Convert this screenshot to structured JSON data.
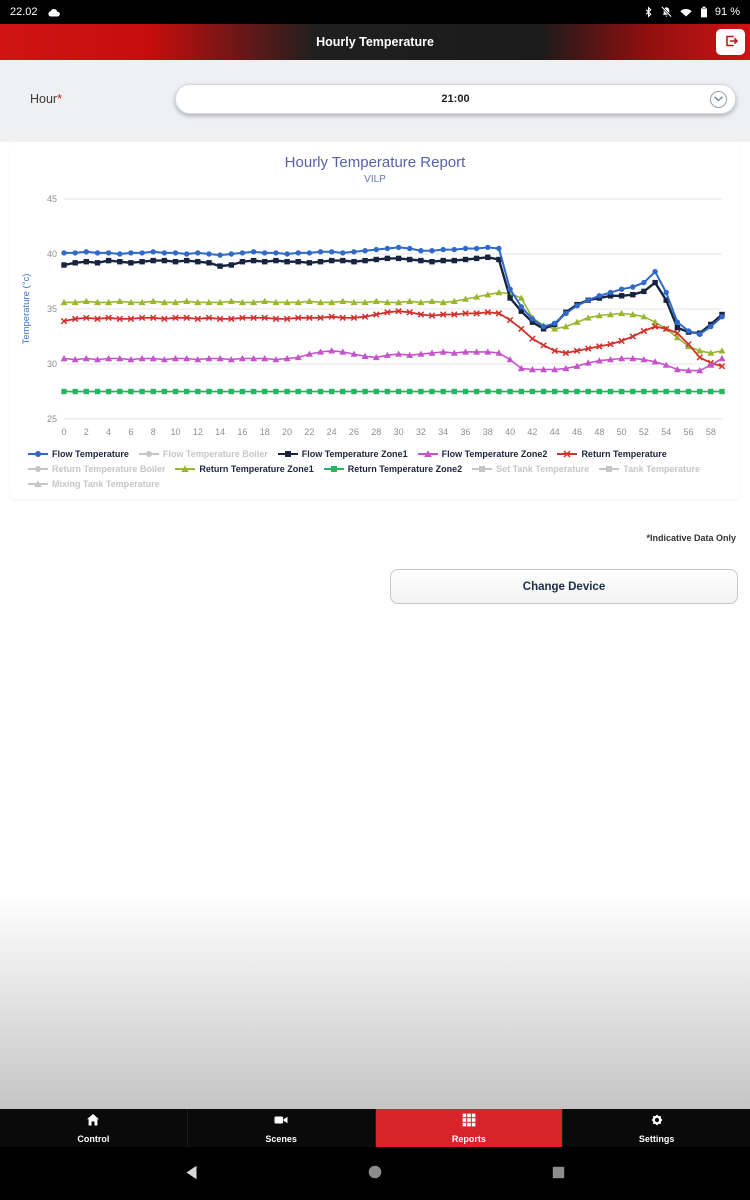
{
  "status_bar": {
    "time": "22.02",
    "battery": "91 %"
  },
  "header": {
    "title": "Hourly Temperature"
  },
  "hour_selector": {
    "label": "Hour",
    "required_mark": "*",
    "value": "21:00"
  },
  "footnote": "*Indicative Data Only",
  "buttons": {
    "change_device": "Change Device"
  },
  "colors": {
    "accent_red": "#d8232a",
    "header_red": "#c60d0d",
    "disabled_gray": "#c6c6c6"
  },
  "bottom_nav": {
    "items": [
      {
        "label": "Control",
        "active": false
      },
      {
        "label": "Scenes",
        "active": false
      },
      {
        "label": "Reports",
        "active": true
      },
      {
        "label": "Settings",
        "active": false
      }
    ]
  },
  "android_nav": {
    "buttons": [
      "back",
      "home",
      "recents"
    ]
  },
  "chart_data": {
    "type": "line",
    "title": "Hourly Temperature Report",
    "subtitle": "VILP",
    "ylabel": "Temperature (°c)",
    "xlabel": "",
    "ylim": [
      25,
      45
    ],
    "y_ticks": [
      25,
      30,
      35,
      40,
      45
    ],
    "x_tick_step": 2,
    "grid": "horizontal",
    "legend_position": "bottom",
    "x": [
      0,
      1,
      2,
      3,
      4,
      5,
      6,
      7,
      8,
      9,
      10,
      11,
      12,
      13,
      14,
      15,
      16,
      17,
      18,
      19,
      20,
      21,
      22,
      23,
      24,
      25,
      26,
      27,
      28,
      29,
      30,
      31,
      32,
      33,
      34,
      35,
      36,
      37,
      38,
      39,
      40,
      41,
      42,
      43,
      44,
      45,
      46,
      47,
      48,
      49,
      50,
      51,
      52,
      53,
      54,
      55,
      56,
      57,
      58,
      59
    ],
    "series": [
      {
        "name": "Flow Temperature",
        "color": "#3069c9",
        "marker": "circle",
        "line_width": 2,
        "enabled": true,
        "values": [
          40.1,
          40.1,
          40.2,
          40.1,
          40.1,
          40.0,
          40.1,
          40.1,
          40.2,
          40.1,
          40.1,
          40.0,
          40.1,
          40.0,
          39.9,
          40.0,
          40.1,
          40.2,
          40.1,
          40.1,
          40.0,
          40.1,
          40.1,
          40.2,
          40.2,
          40.1,
          40.2,
          40.3,
          40.4,
          40.5,
          40.6,
          40.5,
          40.3,
          40.3,
          40.4,
          40.4,
          40.5,
          40.5,
          40.6,
          40.5,
          36.8,
          35.2,
          34.1,
          33.4,
          33.7,
          34.6,
          35.3,
          35.8,
          36.2,
          36.5,
          36.8,
          37.0,
          37.4,
          38.4,
          36.5,
          33.8,
          33.0,
          32.7,
          33.4,
          34.3
        ]
      },
      {
        "name": "Flow Temperature Boiler",
        "color": "#c6c6c6",
        "marker": "circle",
        "line_width": 1.6,
        "enabled": false,
        "values": []
      },
      {
        "name": "Flow Temperature Zone1",
        "color": "#17233f",
        "marker": "square",
        "line_width": 2.4,
        "enabled": true,
        "values": [
          39.0,
          39.2,
          39.3,
          39.2,
          39.4,
          39.3,
          39.2,
          39.3,
          39.4,
          39.4,
          39.3,
          39.4,
          39.3,
          39.2,
          38.9,
          39.0,
          39.3,
          39.4,
          39.3,
          39.4,
          39.3,
          39.3,
          39.2,
          39.3,
          39.4,
          39.4,
          39.3,
          39.4,
          39.5,
          39.6,
          39.6,
          39.5,
          39.4,
          39.3,
          39.4,
          39.4,
          39.5,
          39.6,
          39.7,
          39.5,
          36.0,
          34.8,
          33.8,
          33.2,
          33.6,
          34.7,
          35.4,
          35.8,
          36.0,
          36.2,
          36.2,
          36.3,
          36.6,
          37.4,
          35.8,
          33.3,
          32.9,
          32.8,
          33.6,
          34.5
        ]
      },
      {
        "name": "Flow Temperature Zone2",
        "color": "#c653cc",
        "marker": "triangle",
        "line_width": 1.6,
        "enabled": true,
        "values": [
          30.5,
          30.4,
          30.5,
          30.4,
          30.5,
          30.5,
          30.4,
          30.5,
          30.5,
          30.4,
          30.5,
          30.5,
          30.4,
          30.5,
          30.5,
          30.4,
          30.5,
          30.5,
          30.5,
          30.4,
          30.5,
          30.6,
          30.9,
          31.1,
          31.2,
          31.1,
          30.9,
          30.7,
          30.6,
          30.8,
          30.9,
          30.8,
          30.9,
          31.0,
          31.1,
          31.0,
          31.1,
          31.1,
          31.1,
          31.0,
          30.4,
          29.6,
          29.5,
          29.5,
          29.5,
          29.6,
          29.8,
          30.1,
          30.3,
          30.4,
          30.5,
          30.5,
          30.4,
          30.2,
          29.9,
          29.5,
          29.4,
          29.4,
          29.9,
          30.5
        ]
      },
      {
        "name": "Return Temperature",
        "color": "#d2302c",
        "marker": "cross",
        "line_width": 1.8,
        "enabled": true,
        "values": [
          33.9,
          34.1,
          34.2,
          34.1,
          34.2,
          34.1,
          34.1,
          34.2,
          34.2,
          34.1,
          34.2,
          34.2,
          34.1,
          34.2,
          34.1,
          34.1,
          34.2,
          34.2,
          34.2,
          34.1,
          34.1,
          34.2,
          34.2,
          34.2,
          34.3,
          34.2,
          34.2,
          34.3,
          34.5,
          34.7,
          34.8,
          34.7,
          34.5,
          34.4,
          34.5,
          34.5,
          34.6,
          34.6,
          34.7,
          34.6,
          34.0,
          33.2,
          32.3,
          31.7,
          31.2,
          31.0,
          31.2,
          31.4,
          31.6,
          31.8,
          32.1,
          32.5,
          33.0,
          33.4,
          33.2,
          32.8,
          31.8,
          30.6,
          30.1,
          29.8
        ]
      },
      {
        "name": "Return Temperature Boiler",
        "color": "#c6c6c6",
        "marker": "circle",
        "line_width": 1.6,
        "enabled": false,
        "values": []
      },
      {
        "name": "Return Temperature Zone1",
        "color": "#9ab62e",
        "marker": "triangle",
        "line_width": 1.6,
        "enabled": true,
        "values": [
          35.6,
          35.6,
          35.7,
          35.6,
          35.6,
          35.7,
          35.6,
          35.6,
          35.7,
          35.6,
          35.6,
          35.7,
          35.6,
          35.6,
          35.6,
          35.7,
          35.6,
          35.6,
          35.7,
          35.6,
          35.6,
          35.6,
          35.7,
          35.6,
          35.6,
          35.7,
          35.6,
          35.6,
          35.7,
          35.6,
          35.6,
          35.7,
          35.6,
          35.7,
          35.6,
          35.7,
          35.9,
          36.1,
          36.3,
          36.5,
          36.4,
          36.0,
          34.2,
          33.5,
          33.2,
          33.4,
          33.8,
          34.2,
          34.4,
          34.5,
          34.6,
          34.5,
          34.3,
          33.8,
          33.2,
          32.4,
          31.6,
          31.2,
          31.0,
          31.2
        ]
      },
      {
        "name": "Return Temperature Zone2",
        "color": "#27b561",
        "marker": "square",
        "line_width": 1.8,
        "enabled": true,
        "values": [
          27.5,
          27.5,
          27.5,
          27.5,
          27.5,
          27.5,
          27.5,
          27.5,
          27.5,
          27.5,
          27.5,
          27.5,
          27.5,
          27.5,
          27.5,
          27.5,
          27.5,
          27.5,
          27.5,
          27.5,
          27.5,
          27.5,
          27.5,
          27.5,
          27.5,
          27.5,
          27.5,
          27.5,
          27.5,
          27.5,
          27.5,
          27.5,
          27.5,
          27.5,
          27.5,
          27.5,
          27.5,
          27.5,
          27.5,
          27.5,
          27.5,
          27.5,
          27.5,
          27.5,
          27.5,
          27.5,
          27.5,
          27.5,
          27.5,
          27.5,
          27.5,
          27.5,
          27.5,
          27.5,
          27.5,
          27.5,
          27.5,
          27.5,
          27.5,
          27.5
        ]
      },
      {
        "name": "Set Tank Temperature",
        "color": "#c6c6c6",
        "marker": "square",
        "line_width": 1.6,
        "enabled": false,
        "values": []
      },
      {
        "name": "Tank Temperature",
        "color": "#c6c6c6",
        "marker": "square",
        "line_width": 1.6,
        "enabled": false,
        "values": []
      },
      {
        "name": "Mixing Tank Temperature",
        "color": "#c6c6c6",
        "marker": "triangle",
        "line_width": 1.6,
        "enabled": false,
        "values": []
      }
    ]
  }
}
